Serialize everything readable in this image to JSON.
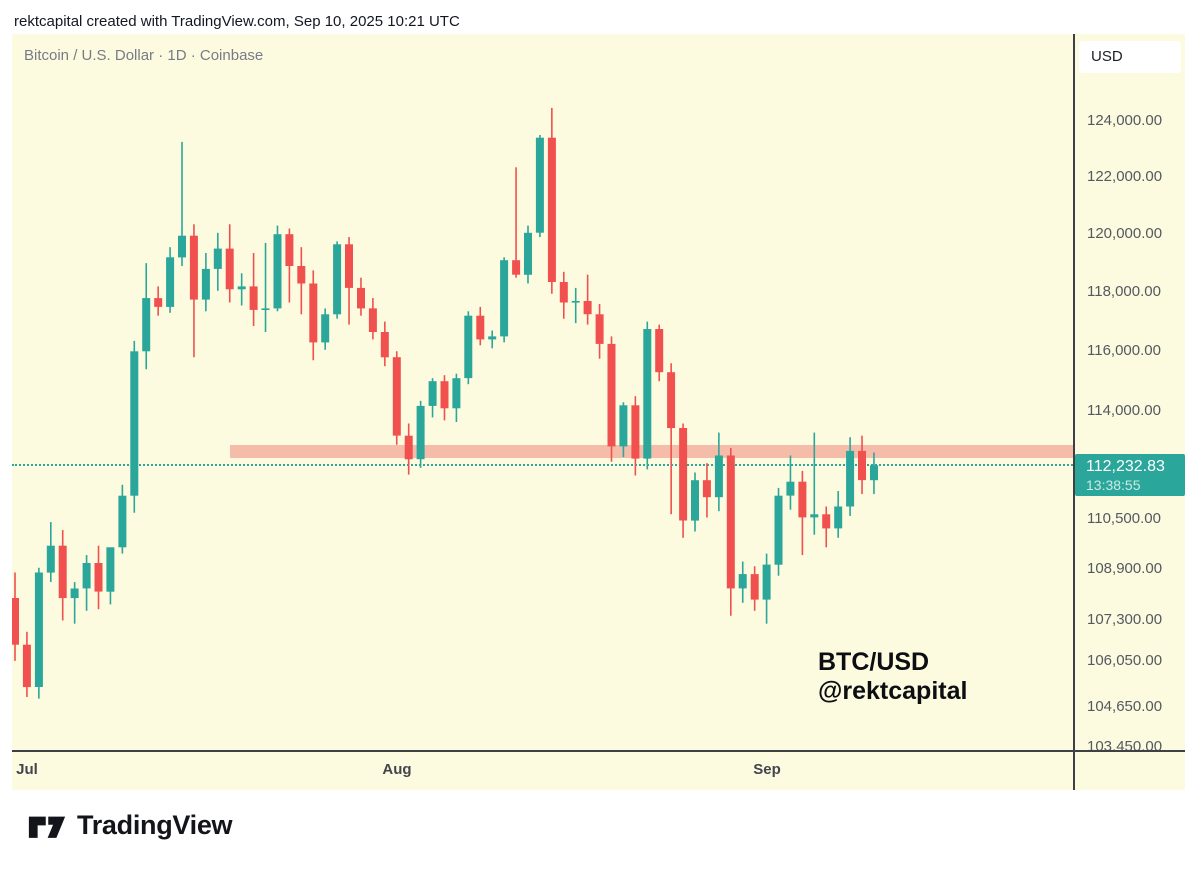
{
  "attribution": "rektcapital created with TradingView.com, Sep 10, 2025 10:21 UTC",
  "chart": {
    "title": "Bitcoin / U.S. Dollar · 1D · Coinbase",
    "currency_button": "USD",
    "watermark": {
      "line1": "BTC/USD",
      "line2": "@rektcapital"
    }
  },
  "branding": {
    "logo_text": "TradingView"
  },
  "chart_data": {
    "type": "candlestick",
    "symbol": "Bitcoin / U.S. Dollar",
    "interval": "1D",
    "exchange": "Coinbase",
    "scale": "log",
    "grid": "off",
    "colors": {
      "background": "#FCFBE0",
      "bullish": "#2AA69A",
      "bearish": "#F0504E",
      "band": "#F6BCAA",
      "last_price_line": "#2AA69A",
      "badge_background": "#2AA69A",
      "axis_text": "#55585F"
    },
    "y_axis": {
      "ticks": [
        {
          "label": "124,000.00",
          "price": 124000
        },
        {
          "label": "122,000.00",
          "price": 122000
        },
        {
          "label": "120,000.00",
          "price": 120000
        },
        {
          "label": "118,000.00",
          "price": 118000
        },
        {
          "label": "116,000.00",
          "price": 116000
        },
        {
          "label": "114,000.00",
          "price": 114000
        },
        {
          "label": "110,500.00",
          "price": 110500
        },
        {
          "label": "108,900.00",
          "price": 108900
        },
        {
          "label": "107,300.00",
          "price": 107300
        },
        {
          "label": "106,050.00",
          "price": 106050
        },
        {
          "label": "104,650.00",
          "price": 104650
        },
        {
          "label": "103,450.00",
          "price": 103450
        }
      ]
    },
    "x_axis": {
      "month_ticks": [
        {
          "label": "Jul",
          "candle_index": 1
        },
        {
          "label": "Aug",
          "candle_index": 32
        },
        {
          "label": "Sep",
          "candle_index": 63
        }
      ]
    },
    "last_price": {
      "value": 112232.83,
      "label": "112,232.83",
      "countdown": "13:38:55"
    },
    "highlight_band": {
      "top_price": 112900,
      "bottom_price": 112480,
      "start_candle_index": 18
    },
    "ohlc_order": [
      "open",
      "high",
      "low",
      "close"
    ],
    "candles": [
      [
        108000,
        108800,
        106050,
        106550
      ],
      [
        106550,
        106950,
        104950,
        105250
      ],
      [
        105250,
        108950,
        104900,
        108800
      ],
      [
        108800,
        110400,
        108500,
        109650
      ],
      [
        109650,
        110150,
        107300,
        108000
      ],
      [
        108000,
        108500,
        107200,
        108300
      ],
      [
        108300,
        109350,
        107600,
        109100
      ],
      [
        109100,
        109650,
        107650,
        108200
      ],
      [
        108200,
        109500,
        107800,
        109600
      ],
      [
        109600,
        111600,
        109400,
        111250
      ],
      [
        111250,
        116350,
        110700,
        116000
      ],
      [
        116000,
        119000,
        115400,
        117800
      ],
      [
        117800,
        118200,
        117200,
        117500
      ],
      [
        117500,
        119550,
        117300,
        119200
      ],
      [
        119200,
        123250,
        118900,
        119950
      ],
      [
        119950,
        120350,
        115800,
        117750
      ],
      [
        117750,
        119350,
        117350,
        118800
      ],
      [
        118800,
        120050,
        118050,
        119500
      ],
      [
        119500,
        120350,
        117650,
        118100
      ],
      [
        118100,
        118650,
        117550,
        118200
      ],
      [
        118200,
        119350,
        116850,
        117400
      ],
      [
        117400,
        119700,
        116650,
        117450
      ],
      [
        117450,
        120300,
        117350,
        120000
      ],
      [
        120000,
        120200,
        117650,
        118900
      ],
      [
        118900,
        119550,
        117250,
        118300
      ],
      [
        118300,
        118750,
        115700,
        116300
      ],
      [
        116300,
        117450,
        116050,
        117250
      ],
      [
        117250,
        119750,
        117100,
        119650
      ],
      [
        119650,
        119900,
        116900,
        118150
      ],
      [
        118150,
        118500,
        117200,
        117450
      ],
      [
        117450,
        117800,
        116400,
        116650
      ],
      [
        116650,
        117000,
        115500,
        115800
      ],
      [
        115800,
        116000,
        112900,
        113200
      ],
      [
        113200,
        113600,
        111930,
        112430
      ],
      [
        112430,
        114350,
        112150,
        114180
      ],
      [
        114180,
        115100,
        113800,
        115000
      ],
      [
        115000,
        115200,
        113700,
        114100
      ],
      [
        114100,
        115250,
        113650,
        115100
      ],
      [
        115100,
        117350,
        114900,
        117200
      ],
      [
        117200,
        117500,
        116200,
        116400
      ],
      [
        116400,
        116700,
        116100,
        116500
      ],
      [
        116500,
        119200,
        116300,
        119100
      ],
      [
        119100,
        122350,
        118500,
        118600
      ],
      [
        118600,
        120300,
        118300,
        120050
      ],
      [
        120050,
        123500,
        119900,
        123400
      ],
      [
        123400,
        124470,
        117950,
        118350
      ],
      [
        118350,
        118700,
        117100,
        117650
      ],
      [
        117650,
        118150,
        116950,
        117700
      ],
      [
        117700,
        118600,
        116900,
        117250
      ],
      [
        117250,
        117600,
        115750,
        116250
      ],
      [
        116250,
        116500,
        112350,
        112850
      ],
      [
        112850,
        114300,
        112500,
        114200
      ],
      [
        114200,
        114500,
        111900,
        112450
      ],
      [
        112450,
        117000,
        112100,
        116750
      ],
      [
        116750,
        116900,
        115000,
        115300
      ],
      [
        115300,
        115600,
        110650,
        113450
      ],
      [
        113450,
        113600,
        109900,
        110450
      ],
      [
        110450,
        112000,
        110100,
        111750
      ],
      [
        111750,
        112300,
        110550,
        111200
      ],
      [
        111200,
        113300,
        110750,
        112550
      ],
      [
        112550,
        112800,
        107450,
        108300
      ],
      [
        108300,
        109150,
        107850,
        108750
      ],
      [
        108750,
        109000,
        107600,
        107950
      ],
      [
        107950,
        109400,
        107200,
        109050
      ],
      [
        109050,
        111500,
        108700,
        111250
      ],
      [
        111250,
        112550,
        110800,
        111700
      ],
      [
        111700,
        112050,
        109350,
        110550
      ],
      [
        110550,
        113300,
        110000,
        110650
      ],
      [
        110650,
        110900,
        109600,
        110200
      ],
      [
        110200,
        111400,
        109900,
        110900
      ],
      [
        110900,
        113150,
        110600,
        112700
      ],
      [
        112700,
        113200,
        111300,
        111750
      ],
      [
        111750,
        112650,
        111300,
        112232.83
      ]
    ]
  }
}
